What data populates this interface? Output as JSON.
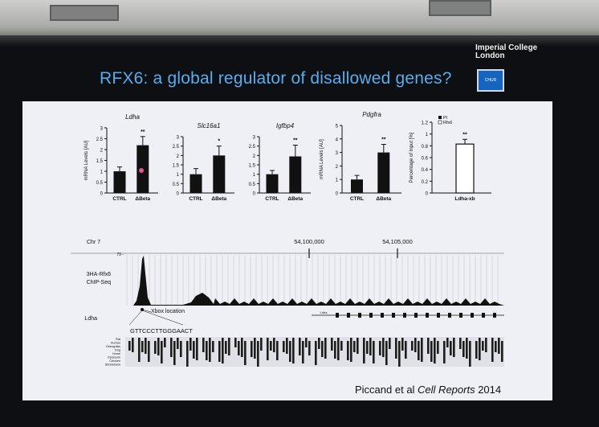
{
  "logo": {
    "line1": "Imperial College",
    "line2": "London"
  },
  "slide_title": "RFX6: a global regulator of disallowed genes?",
  "badge_label": "CHUR",
  "chart_data": [
    {
      "type": "bar",
      "title": "Ldha",
      "ylabel": "mRNA Levels [AU]",
      "ylim": [
        0,
        3
      ],
      "yticks": [
        "0",
        "0.5",
        "1",
        "1.5",
        "2",
        "2.5",
        "3"
      ],
      "categories": [
        "CTRL",
        "ΔBeta"
      ],
      "values": [
        1.0,
        2.2
      ],
      "errors": [
        0.2,
        0.4
      ],
      "significance": "**"
    },
    {
      "type": "bar",
      "title": "Slc16a1",
      "ylabel": "",
      "ylim": [
        0,
        3
      ],
      "yticks": [
        "0",
        "0.5",
        "1",
        "1.5",
        "2",
        "2.5",
        "3"
      ],
      "categories": [
        "CTRL",
        "ΔBeta"
      ],
      "values": [
        1.0,
        2.0
      ],
      "errors": [
        0.3,
        0.5
      ],
      "significance": "*"
    },
    {
      "type": "bar",
      "title": "Igfbp4",
      "ylabel": "",
      "ylim": [
        0,
        3
      ],
      "yticks": [
        "0",
        "0.5",
        "1",
        "1.5",
        "2",
        "2.5",
        "3"
      ],
      "categories": [
        "CTRL",
        "ΔBeta"
      ],
      "values": [
        1.0,
        1.95
      ],
      "errors": [
        0.2,
        0.6
      ],
      "significance": "**"
    },
    {
      "type": "bar",
      "title": "Pdgfra",
      "ylabel": "mRNA Levels [AU]",
      "ylim": [
        0,
        5
      ],
      "yticks": [
        "0",
        "1",
        "2",
        "3",
        "4",
        "5"
      ],
      "categories": [
        "CTRL",
        "ΔBeta"
      ],
      "values": [
        1.0,
        3.0
      ],
      "errors": [
        0.3,
        0.6
      ],
      "significance": "**"
    },
    {
      "type": "bar",
      "title": "",
      "ylabel": "Percentage of Input [%]",
      "ylim": [
        0,
        1.2
      ],
      "yticks": [
        "0",
        "0.2",
        "0.4",
        "0.6",
        "0.8",
        "1",
        "1.2"
      ],
      "categories": [
        "Ldha-xb"
      ],
      "series": [
        {
          "name": "PI",
          "values": [
            0.0
          ]
        },
        {
          "name": "Rfx6",
          "values": [
            0.83
          ]
        }
      ],
      "errors": [
        0.08
      ],
      "significance": "**"
    }
  ],
  "track": {
    "chr_label": "Chr 7",
    "coord1": "54,100,000",
    "coord2": "54,105,000",
    "ymax": "79 -",
    "track_label_1": "3HA-Rfx6",
    "track_label_2": "ChIP-Seq",
    "gene_label": "Ldha",
    "gene_small": "Ldha",
    "xbox_label": "Xbox location",
    "sequence": "GTTCCCTTGGGAACT",
    "species": [
      "Rat",
      "Human",
      "Orangutan",
      "Dog",
      "Horse",
      "Opossum",
      "Chicken",
      "Stickleback"
    ]
  },
  "citation": {
    "authors": "Piccand et al ",
    "journal": "Cell Reports",
    "year": " 2014"
  }
}
